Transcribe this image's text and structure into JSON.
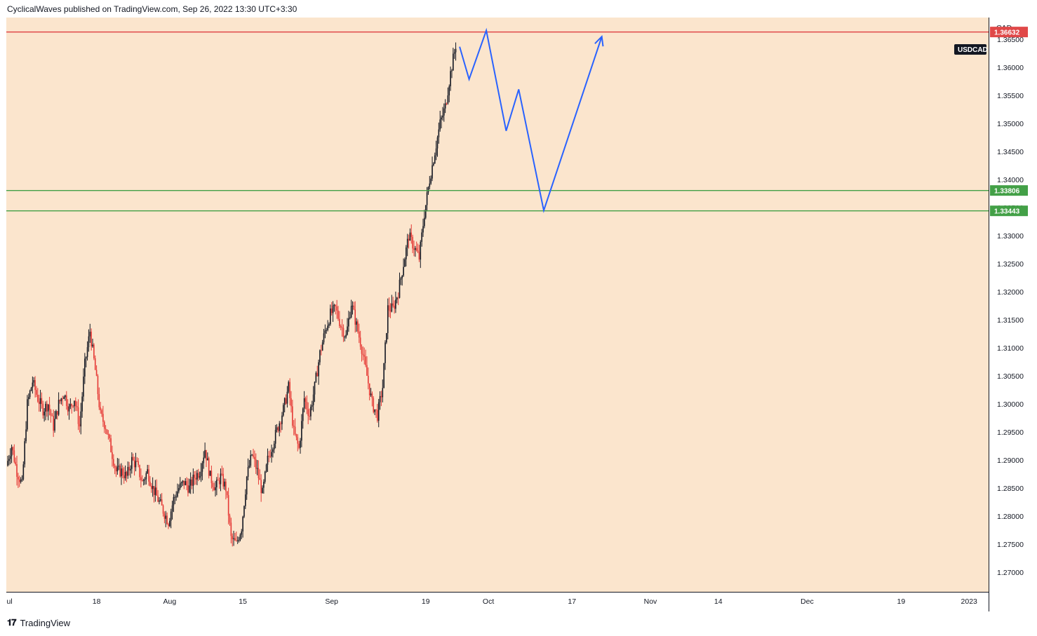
{
  "header": {
    "publisher_line": "CyclicalWaves published on TradingView.com, Sep 26, 2022 13:30 UTC+3:30"
  },
  "footer": {
    "brand": "TradingView",
    "logo_glyph": "𝟏𝟕"
  },
  "colors": {
    "background": "#fbe5cd",
    "resistance": "#e04848",
    "support": "#43a047",
    "projection": "#2962ff",
    "candle_up": "#131722",
    "candle_down": "#e53935"
  },
  "chart_data": {
    "type": "candlestick",
    "symbol": "USDCAD",
    "currency": "CAD",
    "y_axis": {
      "min": 1.2665,
      "max": 1.3689,
      "ticks": [
        "1.27000",
        "1.27500",
        "1.28000",
        "1.28500",
        "1.29000",
        "1.29500",
        "1.30000",
        "1.30500",
        "1.31000",
        "1.31500",
        "1.32000",
        "1.32500",
        "1.33000",
        "1.33500",
        "1.34000",
        "1.34500",
        "1.35000",
        "1.35500",
        "1.36000",
        "1.36500"
      ]
    },
    "x_axis": {
      "labels": [
        {
          "label": "Jul",
          "day": 0
        },
        {
          "label": "18",
          "day": 17
        },
        {
          "label": "Aug",
          "day": 31
        },
        {
          "label": "15",
          "day": 45
        },
        {
          "label": "Sep",
          "day": 62
        },
        {
          "label": "19",
          "day": 80
        },
        {
          "label": "Oct",
          "day": 92
        },
        {
          "label": "17",
          "day": 108
        },
        {
          "label": "Nov",
          "day": 123
        },
        {
          "label": "14",
          "day": 136
        },
        {
          "label": "Dec",
          "day": 153
        },
        {
          "label": "19",
          "day": 171
        },
        {
          "label": "2023",
          "day": 184
        }
      ]
    },
    "horizontal_levels": [
      {
        "price": 1.36632,
        "label": "1.36632",
        "role": "resistance"
      },
      {
        "price": 1.33806,
        "label": "1.33806",
        "role": "support"
      },
      {
        "price": 1.33443,
        "label": "1.33443",
        "role": "support"
      }
    ],
    "price_path": [
      [
        0,
        1.289
      ],
      [
        1,
        1.2925
      ],
      [
        2,
        1.288
      ],
      [
        3,
        1.2855
      ],
      [
        4,
        1.3
      ],
      [
        5,
        1.304
      ],
      [
        6,
        1.301
      ],
      [
        7,
        1.299
      ],
      [
        8,
        1.3
      ],
      [
        9,
        1.296
      ],
      [
        10,
        1.3
      ],
      [
        11,
        1.302
      ],
      [
        12,
        1.299
      ],
      [
        13,
        1.301
      ],
      [
        14,
        1.296
      ],
      [
        15,
        1.307
      ],
      [
        16,
        1.313
      ],
      [
        17,
        1.306
      ],
      [
        18,
        1.298
      ],
      [
        19,
        1.296
      ],
      [
        20,
        1.292
      ],
      [
        21,
        1.288
      ],
      [
        22,
        1.288
      ],
      [
        23,
        1.287
      ],
      [
        24,
        1.29
      ],
      [
        25,
        1.289
      ],
      [
        26,
        1.286
      ],
      [
        27,
        1.288
      ],
      [
        28,
        1.285
      ],
      [
        29,
        1.283
      ],
      [
        30,
        1.281
      ],
      [
        31,
        1.279
      ],
      [
        32,
        1.283
      ],
      [
        33,
        1.285
      ],
      [
        34,
        1.286
      ],
      [
        35,
        1.285
      ],
      [
        36,
        1.287
      ],
      [
        37,
        1.288
      ],
      [
        38,
        1.292
      ],
      [
        39,
        1.287
      ],
      [
        40,
        1.285
      ],
      [
        41,
        1.287
      ],
      [
        42,
        1.285
      ],
      [
        43,
        1.276
      ],
      [
        44,
        1.275
      ],
      [
        45,
        1.278
      ],
      [
        46,
        1.287
      ],
      [
        47,
        1.291
      ],
      [
        48,
        1.288
      ],
      [
        49,
        1.284
      ],
      [
        50,
        1.29
      ],
      [
        51,
        1.293
      ],
      [
        52,
        1.296
      ],
      [
        53,
        1.299
      ],
      [
        54,
        1.303
      ],
      [
        55,
        1.295
      ],
      [
        56,
        1.292
      ],
      [
        57,
        1.301
      ],
      [
        58,
        1.298
      ],
      [
        59,
        1.303
      ],
      [
        60,
        1.309
      ],
      [
        61,
        1.313
      ],
      [
        62,
        1.316
      ],
      [
        63,
        1.317
      ],
      [
        64,
        1.314
      ],
      [
        65,
        1.312
      ],
      [
        66,
        1.318
      ],
      [
        67,
        1.314
      ],
      [
        68,
        1.31
      ],
      [
        69,
        1.305
      ],
      [
        70,
        1.3
      ],
      [
        71,
        1.298
      ],
      [
        72,
        1.303
      ],
      [
        73,
        1.317
      ],
      [
        74,
        1.317
      ],
      [
        75,
        1.32
      ],
      [
        76,
        1.325
      ],
      [
        77,
        1.33
      ],
      [
        78,
        1.328
      ],
      [
        79,
        1.326
      ],
      [
        80,
        1.334
      ],
      [
        81,
        1.34
      ],
      [
        82,
        1.345
      ],
      [
        83,
        1.35
      ],
      [
        84,
        1.353
      ],
      [
        85,
        1.359
      ],
      [
        86,
        1.364
      ]
    ],
    "projection_path": [
      [
        86.5,
        1.3637
      ],
      [
        88.3,
        1.3579
      ],
      [
        91.6,
        1.3666
      ],
      [
        95.4,
        1.3487
      ],
      [
        97.8,
        1.3561
      ],
      [
        102.6,
        1.3345
      ],
      [
        113.7,
        1.3655
      ]
    ]
  }
}
